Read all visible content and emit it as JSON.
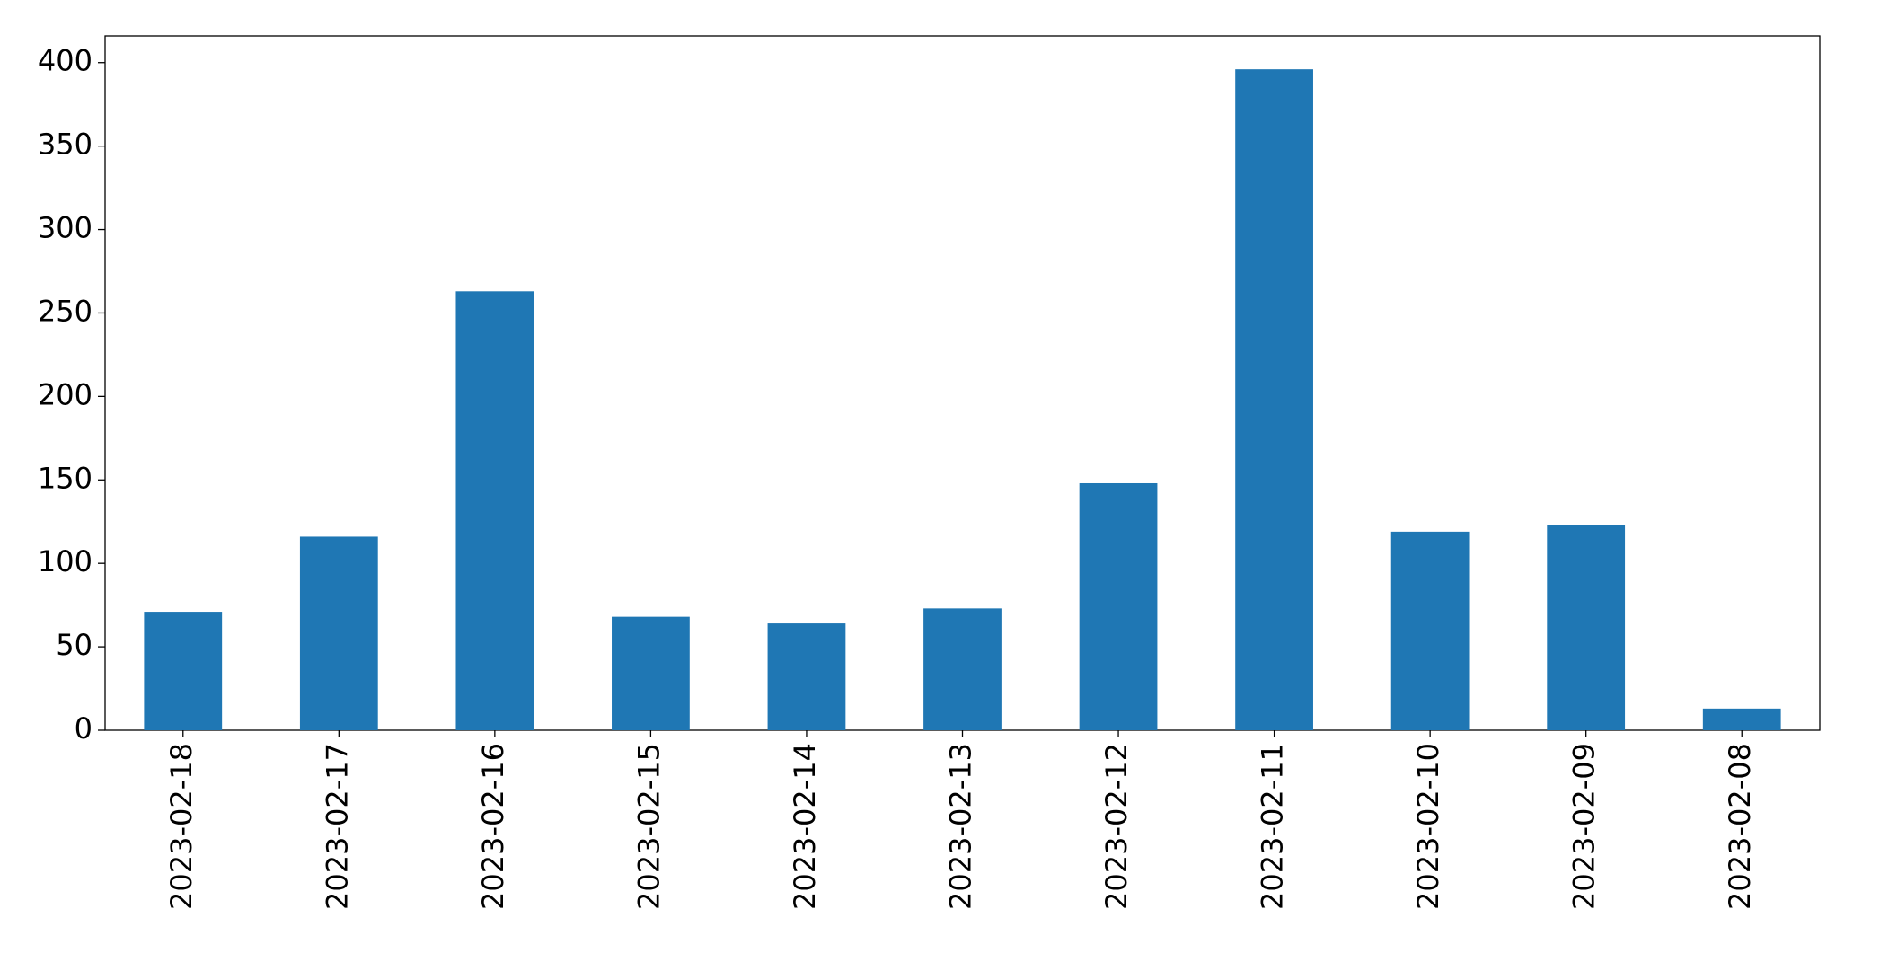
{
  "chart_data": {
    "type": "bar",
    "categories": [
      "2023-02-18",
      "2023-02-17",
      "2023-02-16",
      "2023-02-15",
      "2023-02-14",
      "2023-02-13",
      "2023-02-12",
      "2023-02-11",
      "2023-02-10",
      "2023-02-09",
      "2023-02-08"
    ],
    "values": [
      71,
      116,
      263,
      68,
      64,
      73,
      148,
      396,
      119,
      123,
      13
    ],
    "color": "#1f77b4",
    "ylim": [
      0,
      416
    ],
    "yticks": [
      0,
      50,
      100,
      150,
      200,
      250,
      300,
      350,
      400
    ],
    "grid": false
  }
}
